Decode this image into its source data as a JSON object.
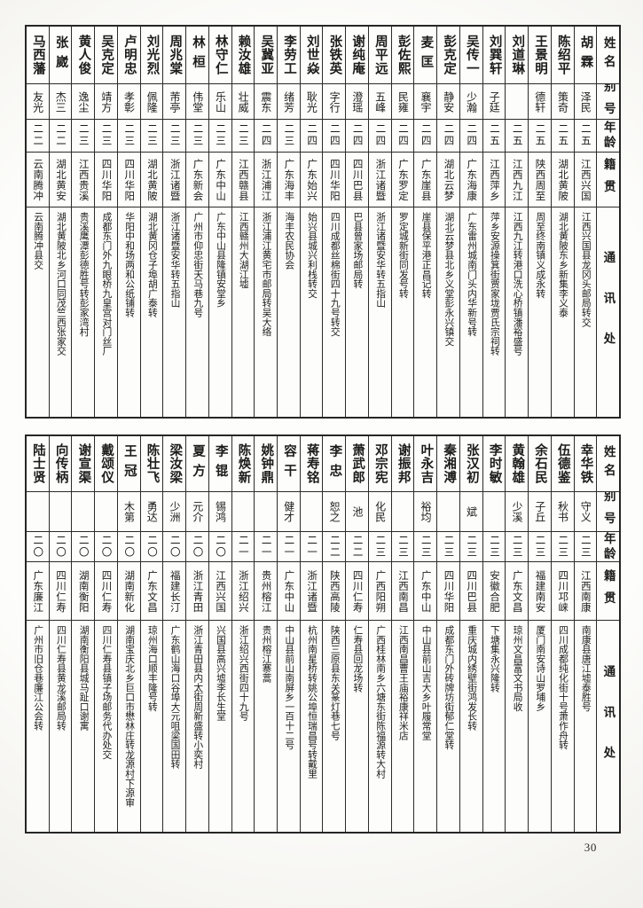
{
  "page": {
    "number": "30"
  },
  "headers": {
    "name": "姓名",
    "alias": "别号",
    "age": "年龄",
    "native_place": "籍贯",
    "address": "通讯处"
  },
  "tables": [
    {
      "entries": [
        {
          "name": "胡霖",
          "alias": "泽民",
          "age": "二五",
          "native": "江西兴国",
          "address": "江西兴国县龙冈头邮局转交"
        },
        {
          "name": "陈绍平",
          "alias": "策奇",
          "age": "二五",
          "native": "湖北黄陂",
          "address": "湖北黄陂东乡新集李义泰"
        },
        {
          "name": "王景明",
          "alias": "德轩",
          "age": "二五",
          "native": "陕西周至",
          "address": "周至终南镇义成永转"
        },
        {
          "name": "刘道琳",
          "alias": "",
          "age": "二五",
          "native": "江西九江",
          "address": "江西九江转港口洗心桥镇潘裕盛号"
        },
        {
          "name": "刘巽轩",
          "alias": "子廷",
          "age": "二五",
          "native": "江西萍乡",
          "address": "萍乡安源操箕街贾家垅贾氏宗祠转"
        },
        {
          "name": "吴传一",
          "alias": "少瀚",
          "age": "二四",
          "native": "广东海康",
          "address": "广东雷州城南门头内华新号转"
        },
        {
          "name": "彭克定",
          "alias": "静安",
          "age": "二四",
          "native": "湖北云梦",
          "address": "湖北云梦县北乡义堂彭永兴镇交"
        },
        {
          "name": "麦匡",
          "alias": "襄宇",
          "age": "二四",
          "native": "广东崖县",
          "address": "崖县保平港正昌记转"
        },
        {
          "name": "彭佐熙",
          "alias": "民雍",
          "age": "二四",
          "native": "广东罗定",
          "address": "罗定城新街同发号转"
        },
        {
          "name": "周平远",
          "alias": "五峰",
          "age": "二四",
          "native": "浙江诸暨",
          "address": "浙江诸暨安华转五指山"
        },
        {
          "name": "谢纯庵",
          "alias": "澄瑶",
          "age": "二四",
          "native": "四川巴县",
          "address": "巴县曾家场邮局转"
        },
        {
          "name": "张铁英",
          "alias": "字行",
          "age": "二四",
          "native": "四川华阳",
          "address": "四川成都丝棉街四十九号转交"
        },
        {
          "name": "刘世焱",
          "alias": "耿光",
          "age": "二四",
          "native": "广东始兴",
          "address": "始兴县城兴利栈转交"
        },
        {
          "name": "李劳工",
          "alias": "绪芳",
          "age": "二三",
          "native": "广东海丰",
          "address": "海丰农民协会"
        },
        {
          "name": "吴冀亚",
          "alias": "震东",
          "age": "二四",
          "native": "浙江浦江",
          "address": "浙江浦江黄宅市邮局转吴大络"
        },
        {
          "name": "赖汝雄",
          "alias": "壮威",
          "age": "二三",
          "native": "江西赣县",
          "address": "江西赣州大湖江墟"
        },
        {
          "name": "林守仁",
          "alias": "乐山",
          "age": "二三",
          "native": "广东中山",
          "address": "广东中山县隆镇安堂乡"
        },
        {
          "name": "林桓",
          "alias": "伟堂",
          "age": "二三",
          "native": "广东新会",
          "address": "广州市仰忠街天马巷九号"
        },
        {
          "name": "周兆棠",
          "alias": "芾亭",
          "age": "二三",
          "native": "浙江诸暨",
          "address": "浙江诸暨安华转五指山"
        },
        {
          "name": "刘光烈",
          "alias": "佩隆",
          "age": "二三",
          "native": "湖北黄陂",
          "address": "湖北黄冈仓子埠胡广泰转"
        },
        {
          "name": "卢明忠",
          "alias": "孝彰",
          "age": "二三",
          "native": "四川华阳",
          "address": "华阳中和场两和公纸铺转"
        },
        {
          "name": "吴克定",
          "alias": "靖方",
          "age": "二三",
          "native": "四川华阳",
          "address": "成都东门外九眼桥九皇宫对门丝厂"
        },
        {
          "name": "黄人俊",
          "alias": "逸尘",
          "age": "二三",
          "native": "江西贵溪",
          "address": "贵溪鹰潭彭德胜号转彭家湾村"
        },
        {
          "name": "张崴",
          "alias": "杰三",
          "age": "二二",
          "native": "湖北黄安",
          "address": "湖北黄陂北乡河口同茂竺西张家交"
        },
        {
          "name": "马西藩",
          "alias": "友光",
          "age": "二二",
          "native": "云南腾冲",
          "address": "云南腾冲县交"
        }
      ]
    },
    {
      "entries": [
        {
          "name": "幸华铁",
          "alias": "守义",
          "age": "二三",
          "native": "江西南康",
          "address": "南康县唐江墟泰胜号"
        },
        {
          "name": "伍德鉴",
          "alias": "秋书",
          "age": "二三",
          "native": "四川邛崃",
          "address": "四川成都纯化街十号萧作舟转"
        },
        {
          "name": "余石民",
          "alias": "子丘",
          "age": "二三",
          "native": "福建南安",
          "address": "厦门南安诗山罗埔乡"
        },
        {
          "name": "黄翰雄",
          "alias": "少溪",
          "age": "二三",
          "native": "广东文昌",
          "address": "琼州文昌富文书局收"
        },
        {
          "name": "李时敏",
          "alias": "",
          "age": "二三",
          "native": "安徽合肥",
          "address": "下塘集永兴隆转"
        },
        {
          "name": "张汉初",
          "alias": "斌",
          "age": "二三",
          "native": "四川巴县",
          "address": "重庆城内绣壁街鸿发长转"
        },
        {
          "name": "秦湘溥",
          "alias": "",
          "age": "二三",
          "native": "四川华阳",
          "address": "成都东门外砖牌坊街郁仁堂转"
        },
        {
          "name": "叶永吉",
          "alias": "裕均",
          "age": "二三",
          "native": "广东中山",
          "address": "中山县前山吉大乡叶履常堂"
        },
        {
          "name": "谢振邦",
          "alias": "",
          "age": "二三",
          "native": "江西南昌",
          "address": "江西南昌曹王庙裕康祥米店"
        },
        {
          "name": "邓宗宪",
          "alias": "化民",
          "age": "二三",
          "native": "广西阳朔",
          "address": "广西桂林南乡六塘东街陈福源转大村"
        },
        {
          "name": "萧武郎",
          "alias": "池",
          "age": "二二",
          "native": "四川仁寿",
          "address": "仁寿县回龙场转"
        },
        {
          "name": "李忠",
          "alias": "恕之",
          "age": "二二",
          "native": "陕西高陵",
          "address": "陕西三原县东关篆灯巷七号"
        },
        {
          "name": "蒋寿铭",
          "alias": "",
          "age": "二一",
          "native": "浙江诸暨",
          "address": "杭州南星桥转姚公埠恒瑞昌号转戴里"
        },
        {
          "name": "容干",
          "alias": "健才",
          "age": "二一",
          "native": "广东中山",
          "address": "中山县前山南屏乡一百十二号"
        },
        {
          "name": "姚钟鼎",
          "alias": "",
          "age": "二一",
          "native": "贵州榕江",
          "address": "贵州榕江寨蒿"
        },
        {
          "name": "陈焕新",
          "alias": "",
          "age": "二一",
          "native": "浙江绍兴",
          "address": "浙江绍兴西街四十九号"
        },
        {
          "name": "李锟",
          "alias": "锡鸿",
          "age": "二〇",
          "native": "江西兴国",
          "address": "兴国县高兴墟李长生堂"
        },
        {
          "name": "夏方",
          "alias": "元介",
          "age": "二〇",
          "native": "浙江青田",
          "address": "浙江青田县内太街周新盛转小奕村"
        },
        {
          "name": "梁汝梁",
          "alias": "少洲",
          "age": "二〇",
          "native": "福建长汀",
          "address": "广东鹤山海口谷埠大元咀梁国田转"
        },
        {
          "name": "陈壮飞",
          "alias": "勇达",
          "age": "二〇",
          "native": "广东文昌",
          "address": "琼州海口顺丰隆号转"
        },
        {
          "name": "王冠",
          "alias": "木第",
          "age": "二〇",
          "native": "湖南新化",
          "address": "湖南宝庆北乡巨口市懋林庄转龙源村下源审"
        },
        {
          "name": "戴颂仪",
          "alias": "",
          "age": "二〇",
          "native": "四川仁寿",
          "address": "四川仁寿县镇子场邮务代办处交"
        },
        {
          "name": "谢宣渠",
          "alias": "",
          "age": "二〇",
          "native": "湖南衡阳",
          "address": "湖南衡阳县城马趾口谢寓"
        },
        {
          "name": "向传柄",
          "alias": "",
          "age": "二〇",
          "native": "四川仁寿",
          "address": "四川仁寿县黄龙溪邮局转"
        },
        {
          "name": "陆士贤",
          "alias": "",
          "age": "二〇",
          "native": "广东廉江",
          "address": "广州市旧仓巷廉江公会转"
        }
      ]
    }
  ]
}
